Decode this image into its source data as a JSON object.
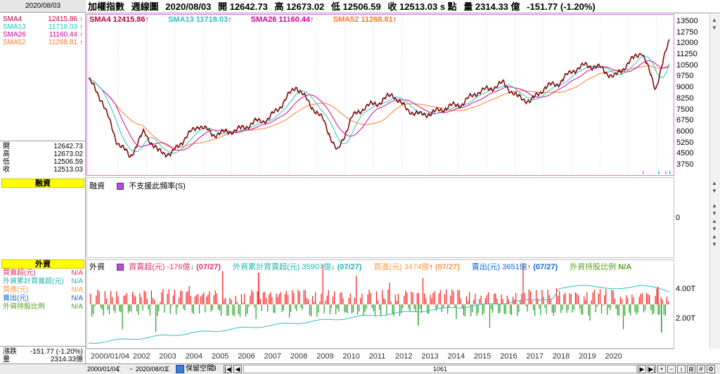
{
  "sidebar": {
    "date": "2020/08/03",
    "sma": [
      {
        "label": "SMA4",
        "value": "12415.86",
        "color": "#b8003a"
      },
      {
        "label": "SMA13",
        "value": "11718.03",
        "color": "#27c2c2"
      },
      {
        "label": "SMA26",
        "value": "11160.44",
        "color": "#d8009a"
      },
      {
        "label": "SMA52",
        "value": "11268.81",
        "color": "#ff7a2a"
      }
    ],
    "ohlc": [
      {
        "label": "開",
        "value": "12642.73"
      },
      {
        "label": "高",
        "value": "12673.02"
      },
      {
        "label": "低",
        "value": "12506.59"
      },
      {
        "label": "收",
        "value": "12513.03"
      }
    ],
    "margin_title": "融資",
    "foreign_title": "外資",
    "foreign_rows": [
      {
        "label": "買賣超(元)",
        "value": "N/A",
        "color": "#e0306a"
      },
      {
        "label": "外資累計買賣超(元)",
        "value": "N/A",
        "color": "#20b4b4"
      },
      {
        "label": "買進(元)",
        "value": "N/A",
        "color": "#ff9a40"
      },
      {
        "label": "賣出(元)",
        "value": "N/A",
        "color": "#0a6ad8"
      },
      {
        "label": "外資持股比例",
        "value": "N/A",
        "color": "#5aa020"
      }
    ],
    "change_label": "漲跌",
    "change_value": "-151.77 (-1.20%)",
    "volume_label": "量",
    "volume_value": "2314.33億"
  },
  "header": {
    "name": "加權指數",
    "period": "週線圖",
    "date": "2020/08/03",
    "open": "開 12642.73",
    "high": "高 12673.02",
    "low": "低 12506.59",
    "close": "收 12513.03 s 點",
    "volume": "量 2314.33 億",
    "change": "-151.77 (-1.20%)"
  },
  "price_legend": [
    {
      "text": "SMA4 12415.86",
      "color": "#b8003a"
    },
    {
      "text": "SMA13 11718.03",
      "color": "#27c2c2"
    },
    {
      "text": "SMA26 11160.44",
      "color": "#d8009a"
    },
    {
      "text": "SMA52 11268.81",
      "color": "#ff7a2a"
    }
  ],
  "price_axis": [
    "13500",
    "12750",
    "12000",
    "11250",
    "10500",
    "9750",
    "9000",
    "8250",
    "7500",
    "6750",
    "6000",
    "5250",
    "4500",
    "3750"
  ],
  "margin_panel": {
    "title": "融資",
    "message": "不支援此頻率(S)",
    "axis_zero": "0"
  },
  "foreign_panel": {
    "title": "外資",
    "legend": [
      {
        "text": "買賣超(元) -176億",
        "tag": "(07/27)",
        "color": "#e0306a",
        "arrow": "down"
      },
      {
        "text": "外資累計買賣超(元) 35907億",
        "tag": "(07/27)",
        "color": "#20b4b4",
        "arrow": "down"
      },
      {
        "text": "買進(元) 3474億",
        "tag": "(07/27)",
        "color": "#ff9a40",
        "arrow": "up"
      },
      {
        "text": "賣出(元) 3651億",
        "tag": "(07/27)",
        "color": "#0a6ad8",
        "arrow": "up"
      },
      {
        "text": "外資持股比例",
        "tag": "N/A",
        "color": "#5aa020",
        "arrow": "none"
      }
    ],
    "axis": [
      "4.00T",
      "2.00T"
    ]
  },
  "x_axis": [
    "2000/01/04",
    "2002",
    "2003",
    "2004",
    "2005",
    "2006",
    "2007",
    "2008",
    "2009",
    "2010",
    "2011",
    "2012",
    "2013",
    "2014",
    "2015",
    "2016",
    "2017",
    "2018",
    "2019",
    "2020"
  ],
  "statusbar": {
    "start_date": "2000/01/04",
    "end_date": "2020/08/03",
    "keep_space_label": "保留空間",
    "keep_space_value": "3",
    "count": "1061"
  },
  "chart_data": [
    {
      "type": "line",
      "title": "加權指數 週線圖",
      "x": [
        "2000",
        "2000.5",
        "2001",
        "2001.5",
        "2002",
        "2002.5",
        "2003",
        "2003.5",
        "2004",
        "2004.5",
        "2005",
        "2005.5",
        "2006",
        "2006.5",
        "2007",
        "2007.5",
        "2008",
        "2008.5",
        "2009",
        "2009.5",
        "2010",
        "2010.5",
        "2011",
        "2011.5",
        "2012",
        "2012.5",
        "2013",
        "2013.5",
        "2014",
        "2014.5",
        "2015",
        "2015.5",
        "2016",
        "2016.5",
        "2017",
        "2017.5",
        "2018",
        "2018.5",
        "2019",
        "2019.5",
        "2020",
        "2020.3",
        "2020.6"
      ],
      "series": [
        {
          "name": "收盤",
          "values": [
            9800,
            8200,
            5400,
            4200,
            6000,
            4600,
            4400,
            5600,
            6500,
            5800,
            6000,
            6200,
            6700,
            6900,
            8000,
            9300,
            8000,
            6800,
            4500,
            7000,
            7800,
            8100,
            8700,
            7600,
            7200,
            7400,
            7800,
            8000,
            8800,
            9100,
            9500,
            8500,
            8200,
            9200,
            9500,
            10400,
            10800,
            10600,
            9900,
            10900,
            11800,
            9100,
            12600
          ]
        }
      ],
      "ylim": [
        3200,
        13900
      ]
    },
    {
      "type": "bar",
      "title": "外資",
      "series": [
        {
          "name": "買賣超(元)",
          "values": [
            -176
          ]
        },
        {
          "name": "外資累計買賣超(元)",
          "values": [
            35907
          ]
        },
        {
          "name": "買進(元)",
          "values": [
            3474
          ]
        },
        {
          "name": "賣出(元)",
          "values": [
            3651
          ]
        }
      ],
      "ylabel": "億"
    }
  ]
}
